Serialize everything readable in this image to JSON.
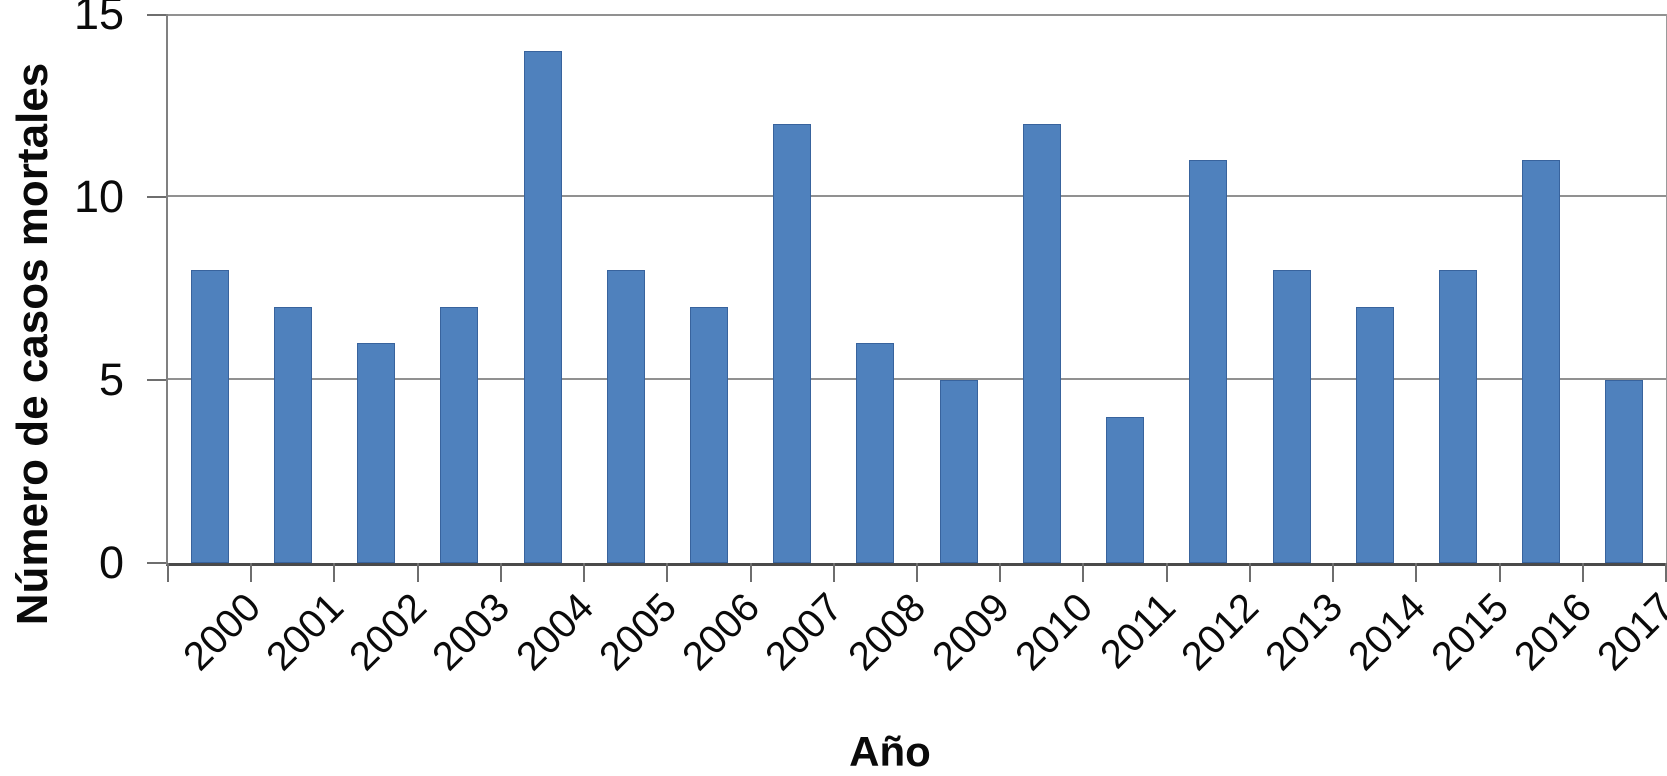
{
  "chart_data": {
    "type": "bar",
    "title": "",
    "categories": [
      "2000",
      "2001",
      "2002",
      "2003",
      "2004",
      "2005",
      "2006",
      "2007",
      "2008",
      "2009",
      "2010",
      "2011",
      "2012",
      "2013",
      "2014",
      "2015",
      "2016",
      "2017"
    ],
    "values": [
      8,
      7,
      6,
      7,
      14,
      8,
      7,
      12,
      6,
      5,
      12,
      4,
      11,
      8,
      7,
      8,
      11,
      5
    ],
    "xlabel": "Año",
    "ylabel": "Número de casos mortales",
    "yticks": [
      0,
      5,
      10,
      15
    ],
    "ylim": [
      0,
      15
    ],
    "grid": "horizontal",
    "legend": "none",
    "colors": {
      "bar_fill": "#4f81bd",
      "bar_border": "#38639d",
      "gridline": "#919191",
      "axis": "#4a4a4a",
      "tick": "#6e6e6e",
      "text": "#0a0a0a"
    }
  }
}
